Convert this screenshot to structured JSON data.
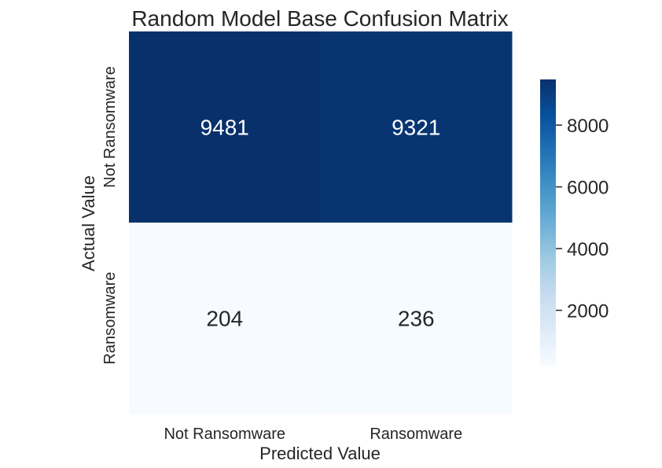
{
  "chart_data": {
    "type": "heatmap",
    "title": "Random Model Base Confusion Matrix",
    "xlabel": "Predicted Value",
    "ylabel": "Actual Value",
    "x_categories": [
      "Not Ransomware",
      "Ransomware"
    ],
    "y_categories": [
      "Not Ransomware",
      "Ransomware"
    ],
    "values": [
      [
        9481,
        9321
      ],
      [
        204,
        236
      ]
    ],
    "colormap": "Blues",
    "colorbar": {
      "ticks": [
        2000,
        4000,
        6000,
        8000
      ],
      "tick_labels": [
        "2000",
        "4000",
        "6000",
        "8000"
      ],
      "range": [
        204,
        9481
      ]
    },
    "colors": {
      "low": "#f7fbff",
      "high": "#08306b",
      "dark_text": "#262626",
      "light_text": "#ffffff"
    }
  }
}
